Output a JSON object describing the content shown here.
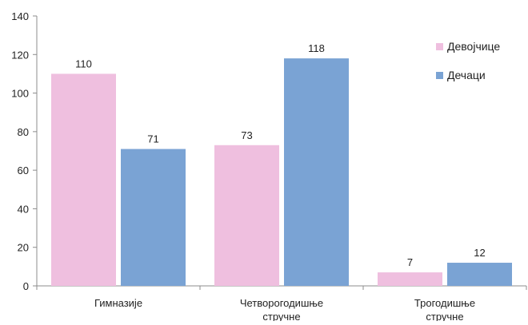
{
  "chart_data": {
    "type": "bar",
    "categories": [
      [
        "Гимназије"
      ],
      [
        "Четворогодишње",
        "стручне"
      ],
      [
        "Трогодишње",
        "стручне"
      ]
    ],
    "series": [
      {
        "name": "Девојчице",
        "values": [
          110,
          73,
          7
        ]
      },
      {
        "name": "Дечаци",
        "values": [
          71,
          118,
          12
        ]
      }
    ],
    "colors": {
      "Девојчице": "#efbfdf",
      "Дечаци": "#7aa3d4"
    },
    "ylim": [
      0,
      140
    ],
    "yticks": [
      0,
      20,
      40,
      60,
      80,
      100,
      120,
      140
    ],
    "grid": false,
    "legend_position": "top-right",
    "data_labels": true
  }
}
